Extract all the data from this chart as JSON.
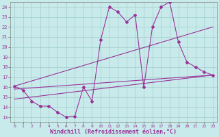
{
  "background_color": "#c8eaea",
  "grid_color": "#a0cccc",
  "line_color": "#993399",
  "xlabel": "Windchill (Refroidissement éolien,°C)",
  "xlabel_fontsize": 6,
  "yticks": [
    13,
    14,
    15,
    16,
    17,
    18,
    19,
    20,
    21,
    22,
    23,
    24
  ],
  "xticks": [
    0,
    1,
    2,
    3,
    4,
    5,
    6,
    7,
    8,
    9,
    10,
    11,
    12,
    13,
    14,
    15,
    16,
    17,
    18,
    19,
    20,
    21,
    22,
    23
  ],
  "xlim": [
    -0.5,
    23.5
  ],
  "ylim": [
    12.5,
    24.5
  ],
  "main_line_x": [
    0,
    1,
    2,
    3,
    4,
    5,
    6,
    7,
    8,
    9,
    10,
    11,
    12,
    13,
    14,
    15,
    16,
    17,
    18,
    19,
    20,
    21,
    22,
    23
  ],
  "main_line_y": [
    16.1,
    15.7,
    14.6,
    14.1,
    14.1,
    13.5,
    13.0,
    13.1,
    16.0,
    14.6,
    20.7,
    24.0,
    23.5,
    22.5,
    23.2,
    16.0,
    22.0,
    24.0,
    24.5,
    20.5,
    18.5,
    18.0,
    17.5,
    17.2
  ],
  "reg_line1_x": [
    0,
    23
  ],
  "reg_line1_y": [
    15.8,
    17.2
  ],
  "reg_line2_x": [
    0,
    23
  ],
  "reg_line2_y": [
    16.1,
    22.0
  ],
  "reg_line3_x": [
    0,
    23
  ],
  "reg_line3_y": [
    14.8,
    17.2
  ]
}
